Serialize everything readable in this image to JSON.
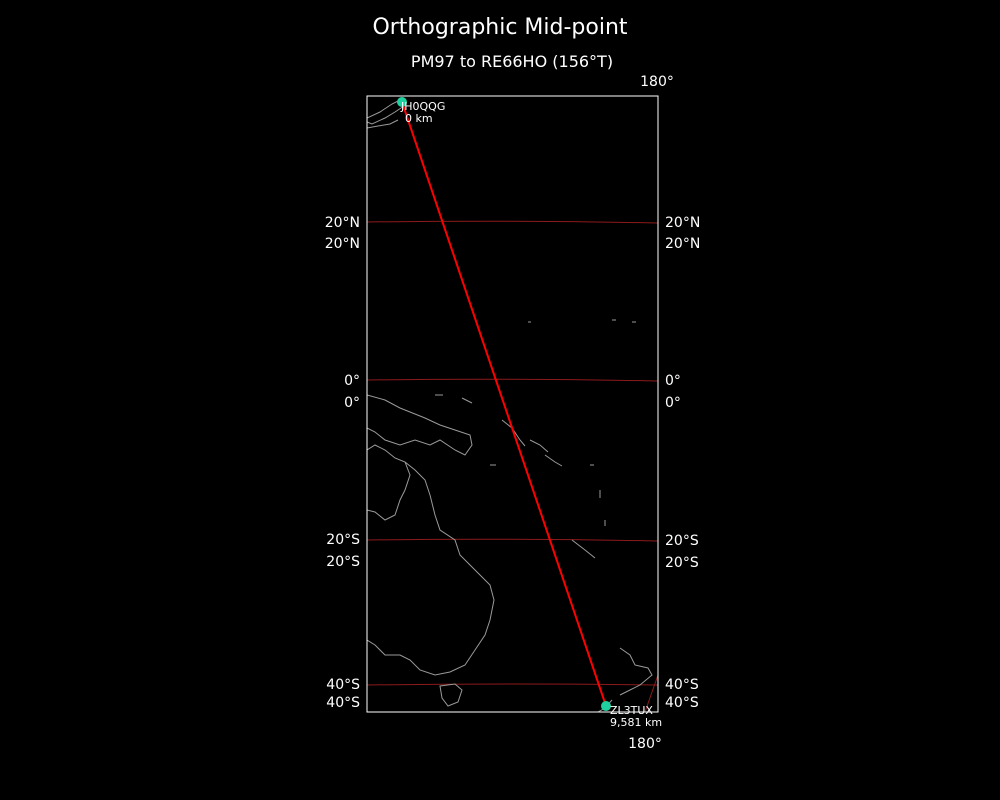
{
  "title": "Orthographic Mid-point",
  "subtitle": "PM97 to RE66HO (156°T)",
  "colors": {
    "background": "#000000",
    "path": "#ff0000",
    "gridline": "#8b1a1a",
    "coast": "#9a9a9a",
    "marker": "#1fd1a0",
    "frame": "#ffffff"
  },
  "lat_labels_left": [
    "20°N",
    "20°N",
    "0°",
    "0°",
    "20°S",
    "20°S",
    "40°S",
    "40°S"
  ],
  "lat_labels_right": [
    "20°N",
    "20°N",
    "0°",
    "0°",
    "20°S",
    "20°S",
    "40°S",
    "40°S"
  ],
  "lon_label_top": "180°",
  "lon_label_bottom": "180°",
  "start": {
    "call": "JH0QQG",
    "distance": "0 km"
  },
  "end": {
    "call": "ZL3TUX",
    "distance": "9,581 km"
  }
}
